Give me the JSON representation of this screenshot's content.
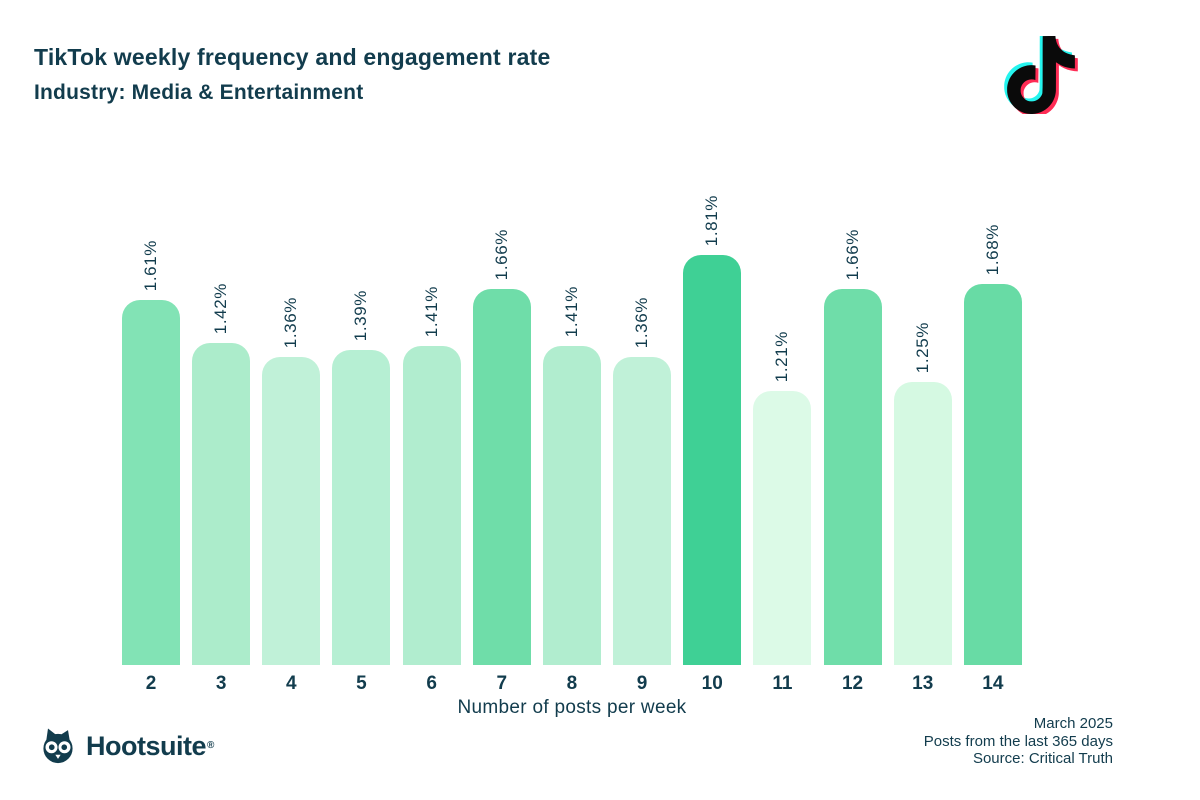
{
  "header": {
    "title": "TikTok weekly frequency and engagement rate",
    "subtitle": "Industry: Media & Entertainment"
  },
  "chart_data": {
    "type": "bar",
    "categories": [
      "2",
      "3",
      "4",
      "5",
      "6",
      "7",
      "8",
      "9",
      "10",
      "11",
      "12",
      "13",
      "14"
    ],
    "values": [
      1.61,
      1.42,
      1.36,
      1.39,
      1.41,
      1.66,
      1.41,
      1.36,
      1.81,
      1.21,
      1.66,
      1.25,
      1.68
    ],
    "value_labels": [
      "1.61%",
      "1.42%",
      "1.36%",
      "1.39%",
      "1.41%",
      "1.66%",
      "1.41%",
      "1.36%",
      "1.81%",
      "1.21%",
      "1.66%",
      "1.25%",
      "1.68%"
    ],
    "bar_colors": [
      "#82e3b5",
      "#aceccb",
      "#c0f1d8",
      "#b6efd3",
      "#b1edcf",
      "#6fdda9",
      "#b1edcf",
      "#c0f1d8",
      "#3fd095",
      "#dcfae7",
      "#6fdda9",
      "#d5f9e2",
      "#68dba5"
    ],
    "title": "TikTok weekly frequency and engagement rate",
    "subtitle": "Industry: Media & Entertainment",
    "xlabel": "Number of posts per week",
    "ylabel": "",
    "ylim": [
      0,
      1.81
    ],
    "grid": false,
    "legend": false,
    "y_axis_visible": false,
    "value_label_rotation_deg": -90
  },
  "footer": {
    "brand": "Hootsuite",
    "registered": "®",
    "date": "March 2025",
    "range": "Posts from the last 365 days",
    "source": "Source: Critical Truth"
  },
  "colors": {
    "ink": "#123c4d",
    "tiktok_cyan": "#25f4ee",
    "tiktok_pink": "#fe2c55",
    "tiktok_black": "#0a0a0a",
    "max_bar": "#3fd095",
    "min_bar": "#dcfae7"
  }
}
